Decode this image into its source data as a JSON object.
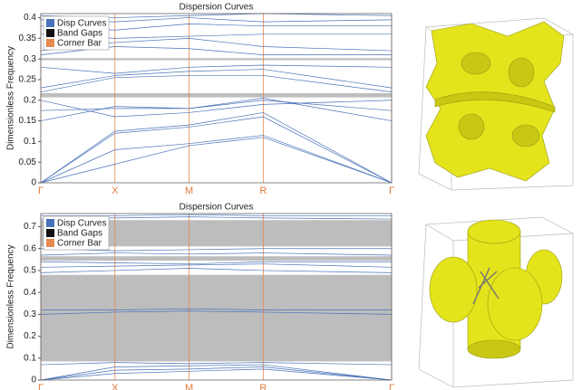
{
  "chart_data": [
    {
      "type": "dispersion",
      "title": "Dispersion Curves",
      "y_label": "Dimensionless Frequency",
      "x": [
        0,
        1,
        2,
        3,
        4.732
      ],
      "xlim": [
        0,
        4.732
      ],
      "xticks": [
        {
          "value": 0,
          "label": "Γ"
        },
        {
          "value": 1,
          "label": "X"
        },
        {
          "value": 2,
          "label": "M"
        },
        {
          "value": 3,
          "label": "R"
        },
        {
          "value": 4.732,
          "label": "Γ"
        }
      ],
      "ylim": [
        0,
        0.41
      ],
      "yticks": [
        0,
        0.05,
        0.1,
        0.15,
        0.2,
        0.25,
        0.3,
        0.35,
        0.4
      ],
      "curve_color": "#4a72b8",
      "gap_color": "#bdbdbd",
      "corner_color": "#e8894f",
      "legend": [
        {
          "label": "Disp Curves",
          "color": "#4a72b8"
        },
        {
          "label": "Band Gaps",
          "color": "#111111"
        },
        {
          "label": "Corner Bar",
          "color": "#e8894f"
        }
      ],
      "band_gaps": [
        [
          0.207,
          0.217
        ],
        [
          0.297,
          0.302
        ]
      ],
      "curves": [
        [
          0,
          0.045,
          0.09,
          0.11,
          0
        ],
        [
          0,
          0.08,
          0.095,
          0.115,
          0
        ],
        [
          0,
          0.12,
          0.135,
          0.16,
          0
        ],
        [
          0,
          0.125,
          0.14,
          0.17,
          0
        ],
        [
          0.15,
          0.185,
          0.18,
          0.205,
          0.15
        ],
        [
          0.175,
          0.18,
          0.18,
          0.2,
          0.175
        ],
        [
          0.2,
          0.16,
          0.17,
          0.19,
          0.2
        ],
        [
          0.22,
          0.255,
          0.26,
          0.26,
          0.22
        ],
        [
          0.23,
          0.26,
          0.27,
          0.275,
          0.23
        ],
        [
          0.28,
          0.265,
          0.28,
          0.285,
          0.28
        ],
        [
          0.31,
          0.33,
          0.325,
          0.31,
          0.31
        ],
        [
          0.32,
          0.34,
          0.35,
          0.33,
          0.32
        ],
        [
          0.36,
          0.35,
          0.355,
          0.36,
          0.36
        ],
        [
          0.38,
          0.37,
          0.385,
          0.38,
          0.38
        ],
        [
          0.395,
          0.39,
          0.4,
          0.39,
          0.395
        ],
        [
          0.405,
          0.4,
          0.405,
          0.41,
          0.405
        ]
      ]
    },
    {
      "type": "dispersion",
      "title": "Dispersion Curves",
      "y_label": "Dimensionless Frequency",
      "x": [
        0,
        1,
        2,
        3,
        4.732
      ],
      "xlim": [
        0,
        4.732
      ],
      "xticks": [
        {
          "value": 0,
          "label": "Γ"
        },
        {
          "value": 1,
          "label": "X"
        },
        {
          "value": 2,
          "label": "M"
        },
        {
          "value": 3,
          "label": "R"
        },
        {
          "value": 4.732,
          "label": "Γ"
        }
      ],
      "ylim": [
        0,
        0.76
      ],
      "yticks": [
        0,
        0.1,
        0.2,
        0.3,
        0.4,
        0.5,
        0.6,
        0.7
      ],
      "curve_color": "#4a72b8",
      "gap_color": "#bdbdbd",
      "corner_color": "#e8894f",
      "legend": [
        {
          "label": "Disp Curves",
          "color": "#4a72b8"
        },
        {
          "label": "Band Gaps",
          "color": "#111111"
        },
        {
          "label": "Corner Bar",
          "color": "#e8894f"
        }
      ],
      "band_gaps": [
        [
          0.085,
          0.48
        ],
        [
          0.545,
          0.565
        ],
        [
          0.61,
          0.73
        ]
      ],
      "curves": [
        [
          0,
          0.03,
          0.04,
          0.05,
          0
        ],
        [
          0,
          0.045,
          0.05,
          0.06,
          0
        ],
        [
          0,
          0.06,
          0.065,
          0.07,
          0
        ],
        [
          0.07,
          0.08,
          0.075,
          0.08,
          0.07
        ],
        [
          0.3,
          0.31,
          0.315,
          0.31,
          0.3
        ],
        [
          0.32,
          0.32,
          0.325,
          0.32,
          0.32
        ],
        [
          0.49,
          0.5,
          0.51,
          0.5,
          0.49
        ],
        [
          0.515,
          0.52,
          0.525,
          0.53,
          0.515
        ],
        [
          0.54,
          0.535,
          0.53,
          0.54,
          0.54
        ],
        [
          0.57,
          0.58,
          0.575,
          0.58,
          0.57
        ],
        [
          0.6,
          0.59,
          0.595,
          0.6,
          0.6
        ],
        [
          0.735,
          0.74,
          0.745,
          0.74,
          0.735
        ],
        [
          0.75,
          0.75,
          0.755,
          0.75,
          0.75
        ]
      ]
    }
  ]
}
